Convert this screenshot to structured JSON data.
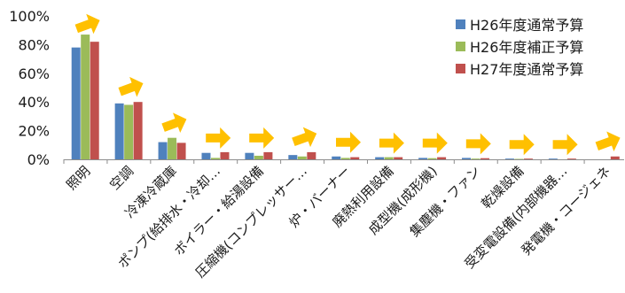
{
  "chart_data": {
    "type": "bar",
    "categories": [
      "照明",
      "空調",
      "冷凍冷蔵庫",
      "ポンプ(給排水・冷却…",
      "ボイラー・給湯設備",
      "圧縮機(コンプレッサー…",
      "炉・バーナー",
      "廃熱利用設備",
      "成型機(成形機)",
      "集塵機・ファン",
      "乾燥設備",
      "受変電設備(内部機器…",
      "発電機・コージェネ"
    ],
    "series": [
      {
        "name": "H26年度通常予算",
        "color": "#4f81bd",
        "values": [
          78,
          39,
          12,
          4.5,
          4.5,
          3,
          2,
          1.5,
          1,
          1,
          0.5,
          0.5,
          0
        ]
      },
      {
        "name": "H26年度補正予算",
        "color": "#9bbb59",
        "values": [
          87,
          38,
          15,
          1,
          2.5,
          2,
          1,
          1.5,
          0.8,
          0.5,
          0.3,
          0,
          0
        ]
      },
      {
        "name": "H27年度通常予算",
        "color": "#c0504d",
        "values": [
          82,
          40,
          11.5,
          5,
          5,
          5,
          1.5,
          1.5,
          1.5,
          0.8,
          0.5,
          0.5,
          2
        ]
      }
    ],
    "ylim": [
      0,
      100
    ],
    "yticks": [
      "0%",
      "20%",
      "40%",
      "60%",
      "80%",
      "100%"
    ],
    "ytick_values": [
      0,
      20,
      40,
      60,
      80,
      100
    ],
    "grid": false,
    "legend_position": "top-right",
    "trend_arrows": [
      "up-right",
      "up-right",
      "up-right",
      "right",
      "right",
      "up-right",
      "right",
      "right",
      "right",
      "right",
      "right",
      "right",
      "up-right"
    ],
    "arrow_color": "#ffc000"
  }
}
